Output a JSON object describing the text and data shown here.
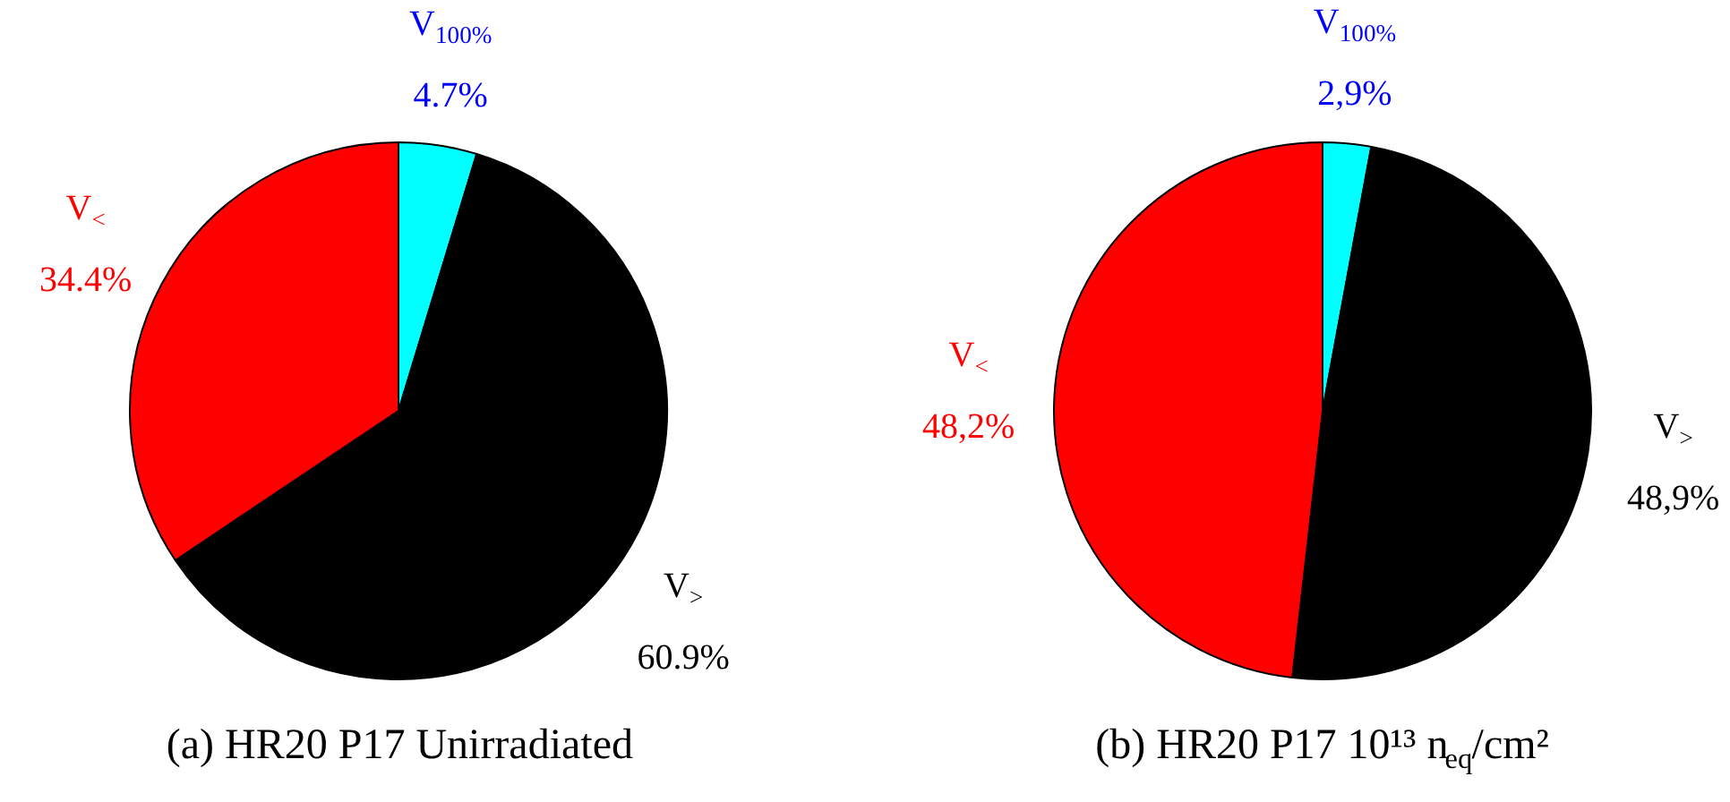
{
  "chart_data": [
    {
      "type": "pie",
      "title": "(a) HR20 P17 Unirradiated",
      "categories": [
        "V$_{100%}$",
        "V$_{>}$",
        "V$_{<}$"
      ],
      "values": [
        4.7,
        60.9,
        34.4
      ],
      "value_labels": [
        "4.7%",
        "60.9%",
        "34.4%"
      ],
      "colors": [
        "#00ffff",
        "#000000",
        "#ff0000"
      ]
    },
    {
      "type": "pie",
      "title": "(b) HR20 P17 10¹³ n$_{eq}$/cm²",
      "categories": [
        "V$_{100%}$",
        "V$_{>}$",
        "V$_{<}$"
      ],
      "values": [
        2.9,
        48.9,
        48.2
      ],
      "value_labels": [
        "2,9%",
        "48,9%",
        "48,2%"
      ],
      "colors": [
        "#00ffff",
        "#000000",
        "#ff0000"
      ]
    }
  ]
}
